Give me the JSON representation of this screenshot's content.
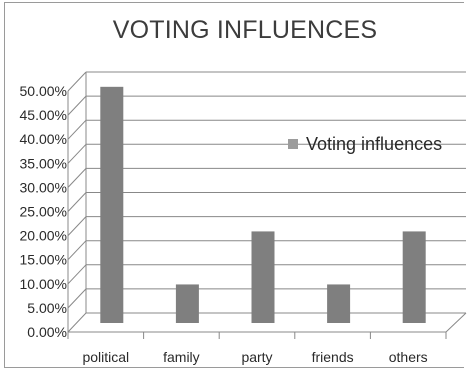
{
  "chart_data": {
    "type": "bar",
    "title": "VOTING INFLUENCES",
    "categories": [
      "political",
      "family",
      "party",
      "friends",
      "others"
    ],
    "series": [
      {
        "name": "Voting influences",
        "values": [
          49,
          8,
          19,
          8,
          19
        ]
      }
    ],
    "y_ticks": [
      "0.00%",
      "5.00%",
      "10.00%",
      "15.00%",
      "20.00%",
      "25.00%",
      "30.00%",
      "35.00%",
      "40.00%",
      "45.00%",
      "50.00%"
    ],
    "ylim": [
      0,
      50
    ],
    "y_unit": "%",
    "grid": true,
    "legend_position": "right",
    "three_d": true,
    "colors": {
      "bar": "#7f7f7f",
      "grid": "#888888",
      "legend_swatch": "#9c9c9c",
      "text": "#2a2a2a"
    }
  }
}
